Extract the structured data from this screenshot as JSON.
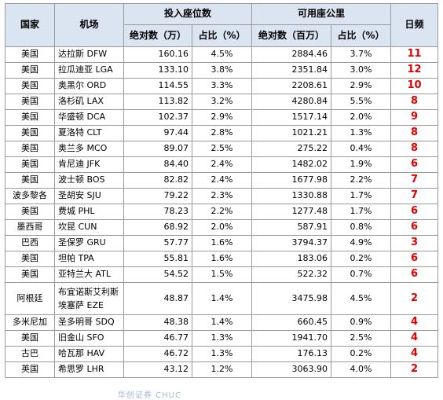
{
  "headers": {
    "country": "国家",
    "airport": "机场",
    "seats_group": "投入座位数",
    "seat_km_group": "可用座公里",
    "frequency": "日频",
    "seats_abs": "绝对数（万）",
    "seats_pct": "占比（%）",
    "seat_km_abs": "绝对数（百万）",
    "seat_km_pct": "占比（%）"
  },
  "rows": [
    {
      "country": "美国",
      "airport": "达拉斯 DFW",
      "seats": "160.16",
      "seats_pct": "4.5%",
      "seat_km": "2884.46",
      "seat_km_pct": "3.7%",
      "freq": "11"
    },
    {
      "country": "美国",
      "airport": "拉瓜迪亚 LGA",
      "seats": "133.10",
      "seats_pct": "3.8%",
      "seat_km": "2351.84",
      "seat_km_pct": "3.0%",
      "freq": "12"
    },
    {
      "country": "美国",
      "airport": "奥黑尔 ORD",
      "seats": "114.55",
      "seats_pct": "3.3%",
      "seat_km": "2208.61",
      "seat_km_pct": "2.9%",
      "freq": "10"
    },
    {
      "country": "美国",
      "airport": "洛杉矶 LAX",
      "seats": "113.82",
      "seats_pct": "3.2%",
      "seat_km": "4280.84",
      "seat_km_pct": "5.5%",
      "freq": "8"
    },
    {
      "country": "美国",
      "airport": "华盛顿 DCA",
      "seats": "102.37",
      "seats_pct": "2.9%",
      "seat_km": "1517.14",
      "seat_km_pct": "2.0%",
      "freq": "9"
    },
    {
      "country": "美国",
      "airport": "夏洛特 CLT",
      "seats": "97.44",
      "seats_pct": "2.8%",
      "seat_km": "1021.21",
      "seat_km_pct": "1.3%",
      "freq": "8"
    },
    {
      "country": "美国",
      "airport": "奥兰多 MCO",
      "seats": "89.07",
      "seats_pct": "2.5%",
      "seat_km": "275.22",
      "seat_km_pct": "0.4%",
      "freq": "8"
    },
    {
      "country": "美国",
      "airport": "肯尼迪 JFK",
      "seats": "84.40",
      "seats_pct": "2.4%",
      "seat_km": "1482.02",
      "seat_km_pct": "1.9%",
      "freq": "6"
    },
    {
      "country": "美国",
      "airport": "波士顿 BOS",
      "seats": "82.82",
      "seats_pct": "2.4%",
      "seat_km": "1677.98",
      "seat_km_pct": "2.2%",
      "freq": "7"
    },
    {
      "country": "波多黎各",
      "airport": "圣胡安 SJU",
      "seats": "79.22",
      "seats_pct": "2.3%",
      "seat_km": "1330.88",
      "seat_km_pct": "1.7%",
      "freq": "7"
    },
    {
      "country": "美国",
      "airport": "费城 PHL",
      "seats": "78.23",
      "seats_pct": "2.2%",
      "seat_km": "1277.48",
      "seat_km_pct": "1.7%",
      "freq": "6"
    },
    {
      "country": "墨西哥",
      "airport": "坎昆 CUN",
      "seats": "68.92",
      "seats_pct": "2.0%",
      "seat_km": "587.91",
      "seat_km_pct": "0.8%",
      "freq": "6"
    },
    {
      "country": "巴西",
      "airport": "圣保罗 GRU",
      "seats": "57.77",
      "seats_pct": "1.6%",
      "seat_km": "3794.37",
      "seat_km_pct": "4.9%",
      "freq": "3"
    },
    {
      "country": "美国",
      "airport": "坦帕 TPA",
      "seats": "55.81",
      "seats_pct": "1.6%",
      "seat_km": "183.06",
      "seat_km_pct": "0.2%",
      "freq": "6"
    },
    {
      "country": "美国",
      "airport": "亚特兰大 ATL",
      "seats": "54.52",
      "seats_pct": "1.5%",
      "seat_km": "522.32",
      "seat_km_pct": "0.7%",
      "freq": "6"
    },
    {
      "country": "阿根廷",
      "airport": "布宜诺斯艾利斯埃塞萨 EZE",
      "seats": "48.87",
      "seats_pct": "1.4%",
      "seat_km": "3475.98",
      "seat_km_pct": "4.5%",
      "freq": "2"
    },
    {
      "country": "多米尼加",
      "airport": "圣多明哥 SDQ",
      "seats": "48.38",
      "seats_pct": "1.4%",
      "seat_km": "660.45",
      "seat_km_pct": "0.9%",
      "freq": "4"
    },
    {
      "country": "美国",
      "airport": "旧金山 SFO",
      "seats": "46.77",
      "seats_pct": "1.3%",
      "seat_km": "1941.70",
      "seat_km_pct": "2.5%",
      "freq": "4"
    },
    {
      "country": "古巴",
      "airport": "哈瓦那 HAV",
      "seats": "46.72",
      "seats_pct": "1.3%",
      "seat_km": "176.13",
      "seat_km_pct": "0.2%",
      "freq": "4"
    },
    {
      "country": "英国",
      "airport": "希思罗 LHR",
      "seats": "43.12",
      "seats_pct": "1.2%",
      "seat_km": "3063.90",
      "seat_km_pct": "4.0%",
      "freq": "2"
    }
  ],
  "watermark": "华创证券 CHUC",
  "colors": {
    "header_bg": "#dbe5f1",
    "frequency_text": "#e00000",
    "border": "#9a9a9a"
  }
}
